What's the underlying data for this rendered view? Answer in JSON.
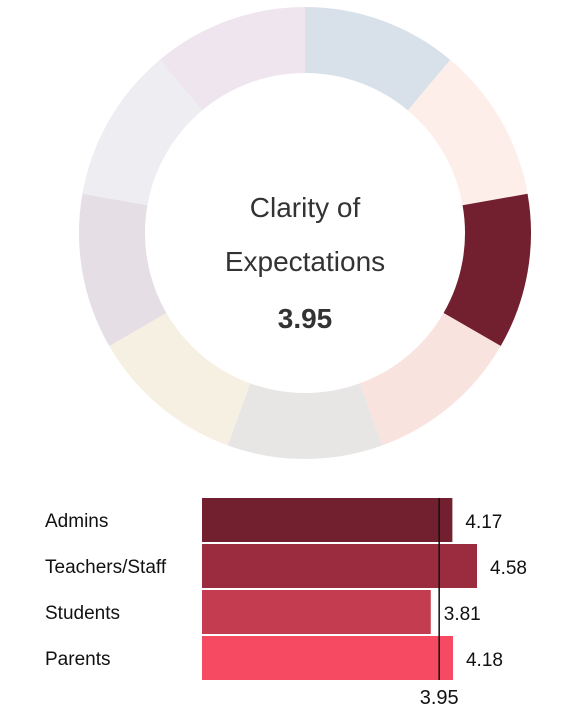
{
  "chart_data": [
    {
      "type": "pie",
      "variant": "donut",
      "title_lines": [
        "Clarity of",
        "Expectations"
      ],
      "center_value": "3.95",
      "segments": [
        {
          "color": "#d8e0e9",
          "highlighted": false
        },
        {
          "color": "#fdeeea",
          "highlighted": false
        },
        {
          "color": "#72202f",
          "highlighted": true
        },
        {
          "color": "#f8e3df",
          "highlighted": false
        },
        {
          "color": "#e8e5e5",
          "highlighted": false
        },
        {
          "color": "#f6f0e3",
          "highlighted": false
        },
        {
          "color": "#e5dfe5",
          "highlighted": false
        },
        {
          "color": "#ededf2",
          "highlighted": false
        },
        {
          "color": "#efe5ee",
          "highlighted": false
        }
      ]
    },
    {
      "type": "bar",
      "orientation": "horizontal",
      "categories": [
        "Admins",
        "Teachers/Staff",
        "Students",
        "Parents"
      ],
      "values": [
        4.17,
        4.58,
        3.81,
        4.18
      ],
      "value_labels": [
        "4.17",
        "4.58",
        "3.81",
        "4.18"
      ],
      "colors": [
        "#72202f",
        "#9b2c3f",
        "#c43c4f",
        "#f64a62"
      ],
      "reference_line": {
        "value": 3.95,
        "label": "3.95"
      },
      "xlim": [
        0,
        5
      ]
    }
  ]
}
